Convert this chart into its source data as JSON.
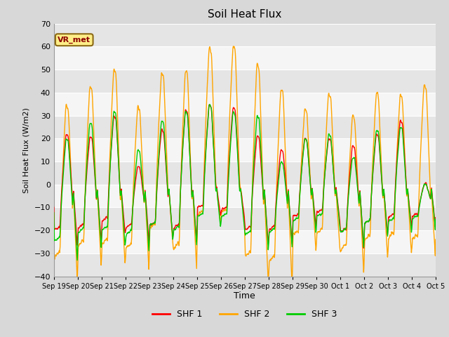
{
  "title": "Soil Heat Flux",
  "ylabel": "Soil Heat Flux (W/m2)",
  "xlabel": "Time",
  "ylim": [
    -40,
    70
  ],
  "yticks": [
    -40,
    -30,
    -20,
    -10,
    0,
    10,
    20,
    30,
    40,
    50,
    60,
    70
  ],
  "colors": {
    "SHF 1": "#FF0000",
    "SHF 2": "#FFA500",
    "SHF 3": "#00CC00"
  },
  "legend_label": "VR_met",
  "bg_color": "#D8D8D8",
  "plot_bg_light": "#F5F5F5",
  "plot_bg_dark": "#E5E5E5",
  "series_names": [
    "SHF 1",
    "SHF 2",
    "SHF 3"
  ],
  "n_days": 16,
  "start_day": 19,
  "peaks_shf2": [
    35,
    43,
    51,
    34,
    49,
    50,
    60,
    61,
    53,
    42,
    33,
    40,
    30,
    40,
    39,
    44
  ],
  "peaks_shf1": [
    22,
    21,
    30,
    8,
    24,
    33,
    35,
    34,
    21,
    15,
    20,
    20,
    17,
    22,
    28,
    0
  ],
  "peaks_shf3": [
    20,
    27,
    32,
    15,
    28,
    32,
    35,
    32,
    30,
    10,
    20,
    22,
    12,
    24,
    25,
    0
  ],
  "troughs_shf2": [
    -32,
    -27,
    -26,
    -28,
    -19,
    -28,
    -13,
    -12,
    -32,
    -34,
    -22,
    -21,
    -29,
    -24,
    -23,
    -24
  ],
  "troughs_shf1": [
    -20,
    -19,
    -16,
    -19,
    -18,
    -19,
    -10,
    -11,
    -20,
    -20,
    -14,
    -12,
    -21,
    -17,
    -14,
    -14
  ],
  "troughs_shf3": [
    -25,
    -21,
    -20,
    -22,
    -18,
    -20,
    -14,
    -14,
    -22,
    -21,
    -16,
    -14,
    -21,
    -17,
    -16,
    -15
  ]
}
